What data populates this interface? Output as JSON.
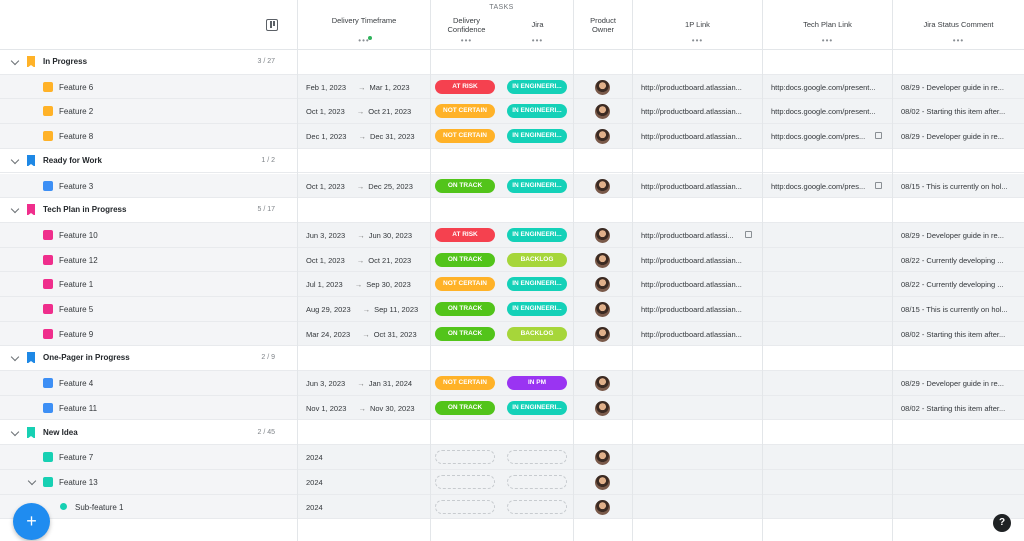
{
  "header": {
    "tasks_label": "TASKS",
    "columns": {
      "delivery_timeframe": "Delivery Timeframe",
      "delivery_confidence": "Delivery Confidence",
      "jira": "Jira",
      "product_owner": "Product Owner",
      "link_1p": "1P Link",
      "tech_plan_link": "Tech Plan Link",
      "jira_status_comment": "Jira Status Comment"
    },
    "dots": "•••"
  },
  "colors": {
    "at_risk": "#f5414f",
    "not_certain": "#ffb228",
    "on_track": "#52c41a",
    "in_engineering": "#14d1b8",
    "backlog": "#a6d63a",
    "in_pm": "#9a34f2",
    "in_progress": "#ffb228",
    "ready": "#1e88e5",
    "tech_plan": "#ef2e8c",
    "one_pager": "#1e88e5",
    "new_idea": "#17d0b3",
    "feature_blue": "#3d8ff5"
  },
  "groups": [
    {
      "name": "In Progress",
      "count": "3 / 27",
      "color": "in_progress",
      "features": [
        {
          "name": "Feature 6",
          "color": "in_progress",
          "start": "Feb 1, 2023",
          "end": "Mar 1, 2023",
          "confidence": "AT RISK",
          "conf_color": "at_risk",
          "jira": "IN ENGINEERI...",
          "jira_color": "in_engineering",
          "p_link": "http://productboard.atlassian...",
          "t_link": "http:docs.google.com/present...",
          "t_ext": false,
          "comment": "08/29 - Developer guide in re..."
        },
        {
          "name": "Feature 2",
          "color": "in_progress",
          "start": "Oct 1, 2023",
          "end": "Oct 21, 2023",
          "confidence": "NOT CERTAIN",
          "conf_color": "not_certain",
          "jira": "IN ENGINEERI...",
          "jira_color": "in_engineering",
          "p_link": "http://productboard.atlassian...",
          "t_link": "http:docs.google.com/present...",
          "t_ext": false,
          "comment": "08/02 - Starting this item after..."
        },
        {
          "name": "Feature 8",
          "color": "in_progress",
          "start": "Dec 1, 2023",
          "end": "Dec 31, 2023",
          "confidence": "NOT CERTAIN",
          "conf_color": "not_certain",
          "jira": "IN ENGINEERI...",
          "jira_color": "in_engineering",
          "p_link": "http://productboard.atlassian...",
          "t_link": "http:docs.google.com/pres...",
          "t_ext": true,
          "comment": "08/29 - Developer guide in re..."
        }
      ]
    },
    {
      "name": "Ready for Work",
      "count": "1 / 2",
      "color": "ready",
      "features": [
        {
          "name": "Feature 3",
          "color": "feature_blue",
          "start": "Oct 1, 2023",
          "end": "Dec 25, 2023",
          "confidence": "ON TRACK",
          "conf_color": "on_track",
          "jira": "IN ENGINEERI...",
          "jira_color": "in_engineering",
          "p_link": "http://productboard.atlassian...",
          "t_link": "http:docs.google.com/pres...",
          "t_ext": true,
          "comment": "08/15 - This is currently on hol..."
        }
      ]
    },
    {
      "name": "Tech Plan in Progress",
      "count": "5 / 17",
      "color": "tech_plan",
      "features": [
        {
          "name": "Feature 10",
          "color": "tech_plan",
          "start": "Jun 3, 2023",
          "end": "Jun 30, 2023",
          "confidence": "AT RISK",
          "conf_color": "at_risk",
          "jira": "IN ENGINEERI...",
          "jira_color": "in_engineering",
          "p_link": "http://productboard.atlassi...",
          "p_ext": true,
          "t_link": "",
          "comment": "08/29 - Developer guide in re..."
        },
        {
          "name": "Feature 12",
          "color": "tech_plan",
          "start": "Oct 1, 2023",
          "end": "Oct 21, 2023",
          "confidence": "ON TRACK",
          "conf_color": "on_track",
          "jira": "BACKLOG",
          "jira_color": "backlog",
          "p_link": "http://productboard.atlassian...",
          "t_link": "",
          "comment": "08/22 - Currently developing ..."
        },
        {
          "name": "Feature 1",
          "color": "tech_plan",
          "start": "Jul 1, 2023",
          "end": "Sep 30, 2023",
          "confidence": "NOT CERTAIN",
          "conf_color": "not_certain",
          "jira": "IN ENGINEERI...",
          "jira_color": "in_engineering",
          "p_link": "http://productboard.atlassian...",
          "t_link": "",
          "comment": "08/22 - Currently developing ..."
        },
        {
          "name": "Feature 5",
          "color": "tech_plan",
          "start": "Aug 29, 2023",
          "end": "Sep 11, 2023",
          "confidence": "ON TRACK",
          "conf_color": "on_track",
          "jira": "IN ENGINEERI...",
          "jira_color": "in_engineering",
          "p_link": "http://productboard.atlassian...",
          "t_link": "",
          "comment": "08/15 - This is currently on hol..."
        },
        {
          "name": "Feature 9",
          "color": "tech_plan",
          "start": "Mar 24, 2023",
          "end": "Oct 31, 2023",
          "confidence": "ON TRACK",
          "conf_color": "on_track",
          "jira": "BACKLOG",
          "jira_color": "backlog",
          "p_link": "http://productboard.atlassian...",
          "t_link": "",
          "comment": "08/02 - Starting this item after..."
        }
      ]
    },
    {
      "name": "One-Pager in Progress",
      "count": "2 / 9",
      "color": "one_pager",
      "features": [
        {
          "name": "Feature 4",
          "color": "feature_blue",
          "start": "Jun 3, 2023",
          "end": "Jan 31, 2024",
          "confidence": "NOT CERTAIN",
          "conf_color": "not_certain",
          "jira": "IN PM",
          "jira_color": "in_pm",
          "p_link": "",
          "t_link": "",
          "comment": "08/29 - Developer guide in re..."
        },
        {
          "name": "Feature 11",
          "color": "feature_blue",
          "start": "Nov 1, 2023",
          "end": "Nov 30, 2023",
          "confidence": "ON TRACK",
          "conf_color": "on_track",
          "jira": "IN ENGINEERI...",
          "jira_color": "in_engineering",
          "p_link": "",
          "t_link": "",
          "comment": "08/02 - Starting this item after..."
        }
      ]
    },
    {
      "name": "New Idea",
      "count": "2 / 45",
      "color": "new_idea",
      "features": [
        {
          "name": "Feature 7",
          "color": "new_idea",
          "year": "2024",
          "empty_pills": true,
          "p_link": "",
          "t_link": "",
          "comment": ""
        },
        {
          "name": "Feature 13",
          "color": "new_idea",
          "year": "2024",
          "empty_pills": true,
          "expand": true,
          "p_link": "",
          "t_link": "",
          "comment": ""
        },
        {
          "name": "Sub-feature 1",
          "color": "new_idea",
          "year": "2024",
          "empty_pills": true,
          "sub": true,
          "p_link": "",
          "t_link": "",
          "comment": ""
        }
      ]
    }
  ],
  "fab": {
    "label": "+"
  },
  "help": {
    "label": "?"
  },
  "arrow": "→"
}
